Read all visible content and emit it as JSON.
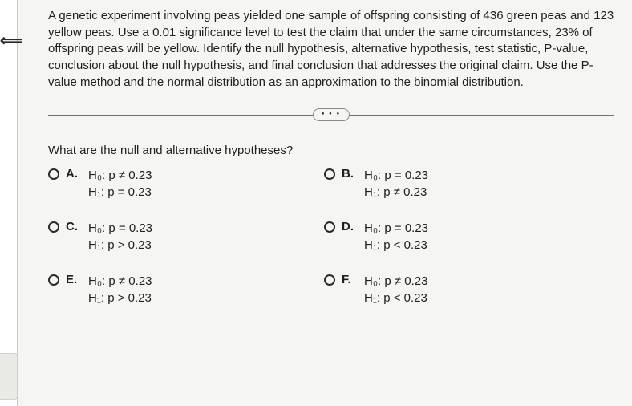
{
  "nav": {
    "back_glyph": "⟸"
  },
  "problem": {
    "prompt": "A genetic experiment involving peas yielded one sample of offspring consisting of 436 green peas and 123 yellow peas. Use a 0.01 significance level to test the claim that under the same circumstances, 23% of offspring peas will be yellow. Identify the null hypothesis, alternative hypothesis, test statistic, P-value, conclusion about the null hypothesis, and final conclusion that addresses the original claim. Use the P-value method and the normal distribution as an approximation to the binomial distribution."
  },
  "more": {
    "dots": "● ● ●"
  },
  "question": "What are the null and alternative hypotheses?",
  "options": [
    {
      "letter": "A.",
      "h0": "H₀: p ≠ 0.23",
      "h1": "H₁: p = 0.23"
    },
    {
      "letter": "B.",
      "h0": "H₀: p = 0.23",
      "h1": "H₁: p ≠ 0.23"
    },
    {
      "letter": "C.",
      "h0": "H₀: p = 0.23",
      "h1": "H₁: p > 0.23"
    },
    {
      "letter": "D.",
      "h0": "H₀: p = 0.23",
      "h1": "H₁: p < 0.23"
    },
    {
      "letter": "E.",
      "h0": "H₀: p ≠ 0.23",
      "h1": "H₁: p > 0.23"
    },
    {
      "letter": "F.",
      "h0": "H₀: p ≠ 0.23",
      "h1": "H₁: p < 0.23"
    }
  ]
}
